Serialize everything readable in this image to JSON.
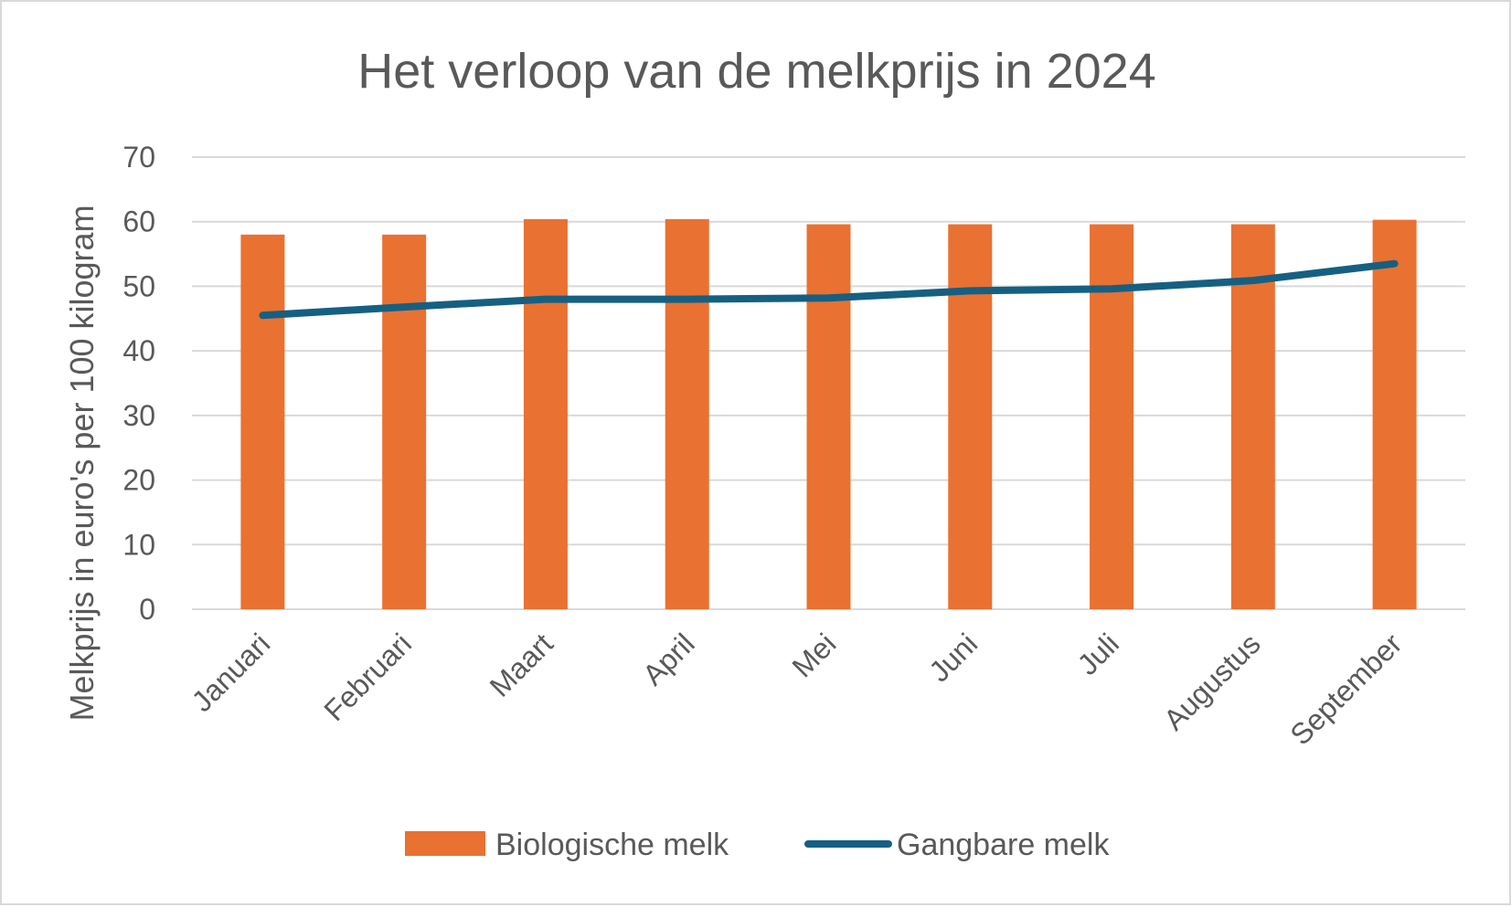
{
  "chart_data": {
    "type": "bar",
    "title": "Het verloop van de melkprijs in 2024",
    "xlabel": "",
    "ylabel": "Melkprijs in euro's per 100 kilogram",
    "categories": [
      "Januari",
      "Februari",
      "Maart",
      "April",
      "Mei",
      "Juni",
      "Juli",
      "Augustus",
      "September"
    ],
    "ylim": [
      0,
      70
    ],
    "yticks": [
      "0",
      "10",
      "20",
      "30",
      "40",
      "50",
      "60",
      "70"
    ],
    "grid": true,
    "legend_position": "bottom",
    "series": [
      {
        "name": "Biologische melk",
        "type": "bar",
        "color": "#e97132",
        "values": [
          58.0,
          58.0,
          60.4,
          60.4,
          59.6,
          59.6,
          59.6,
          59.6,
          60.3
        ]
      },
      {
        "name": "Gangbare melk",
        "type": "line",
        "color": "#156082",
        "values": [
          45.5,
          46.8,
          48.0,
          48.0,
          48.2,
          49.3,
          49.6,
          50.9,
          53.5
        ]
      }
    ]
  }
}
